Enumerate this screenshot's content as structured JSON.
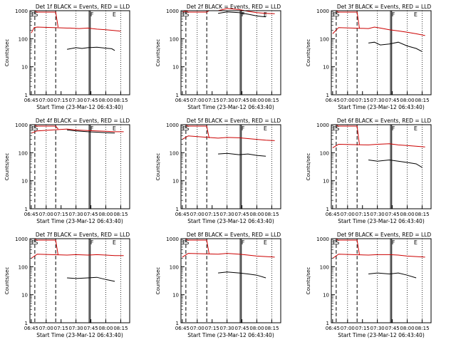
{
  "chart_data": [
    {
      "type": "line",
      "title": "Det 1f BLACK = Events, RED = LLD",
      "xlabel": "Start Time (23-Mar-12 06:43:40)",
      "ylabel": "Counts/sec",
      "x_ticks": [
        "06:45",
        "07:00",
        "07:15",
        "07:30",
        "07:45",
        "08:00",
        "08:15"
      ],
      "y_ticks": [
        "1",
        "10",
        "100",
        "1000"
      ],
      "yscale": "log",
      "ylim": [
        1,
        1000
      ],
      "markers": [
        "E",
        "S",
        "F",
        "E"
      ],
      "series": [
        {
          "color": "#cc0000",
          "values": [
            [
              6.75,
              160
            ],
            [
              6.8,
              250
            ],
            [
              6.85,
              260
            ],
            [
              7.35,
              240
            ],
            [
              7.4,
              240
            ],
            [
              7.55,
              230
            ],
            [
              7.7,
              240
            ],
            [
              7.85,
              220
            ],
            [
              8.0,
              210
            ],
            [
              8.1,
              200
            ],
            [
              8.25,
              185
            ]
          ]
        },
        {
          "color": "#000000",
          "values": [
            [
              7.35,
              42
            ],
            [
              7.5,
              48
            ],
            [
              7.6,
              45
            ],
            [
              7.7,
              48
            ],
            [
              7.85,
              50
            ],
            [
              8.0,
              46
            ],
            [
              8.1,
              44
            ],
            [
              8.15,
              38
            ]
          ]
        }
      ]
    },
    {
      "type": "line",
      "title": "Det 2f BLACK = Events, RED = LLD",
      "xlabel": "Start Time (23-Mar-12 06:43:40)",
      "ylabel": "Counts/sec",
      "x_ticks": [
        "06:45",
        "07:00",
        "07:15",
        "07:30",
        "07:45",
        "08:00",
        "08:15"
      ],
      "y_ticks": [
        "1",
        "10",
        "100",
        "1000"
      ],
      "yscale": "log",
      "ylim": [
        1,
        1000
      ],
      "markers": [
        "E",
        "S",
        "F",
        "E"
      ],
      "series": [
        {
          "color": "#cc0000",
          "values": [
            [
              6.75,
              900
            ],
            [
              6.85,
              1000
            ],
            [
              7.35,
              1000
            ],
            [
              7.5,
              1200
            ],
            [
              7.7,
              1100
            ],
            [
              7.85,
              950
            ],
            [
              8.0,
              850
            ],
            [
              8.15,
              800
            ],
            [
              8.3,
              780
            ]
          ]
        },
        {
          "color": "#000000",
          "values": [
            [
              7.35,
              800
            ],
            [
              7.5,
              900
            ],
            [
              7.7,
              850
            ],
            [
              7.85,
              750
            ],
            [
              8.0,
              650
            ],
            [
              8.15,
              600
            ]
          ]
        }
      ]
    },
    {
      "type": "line",
      "title": "Det 3f BLACK = Events, RED = LLD",
      "xlabel": "Start Time (23-Mar-12 06:43:40)",
      "ylabel": "Counts/sec",
      "x_ticks": [
        "06:45",
        "07:00",
        "07:15",
        "07:30",
        "07:45",
        "08:00",
        "08:15"
      ],
      "y_ticks": [
        "1",
        "10",
        "100",
        "1000"
      ],
      "yscale": "log",
      "ylim": [
        1,
        1000
      ],
      "markers": [
        "E",
        "S",
        "F",
        "E"
      ],
      "series": [
        {
          "color": "#cc0000",
          "values": [
            [
              6.75,
              150
            ],
            [
              6.85,
              250
            ],
            [
              7.35,
              230
            ],
            [
              7.45,
              260
            ],
            [
              7.55,
              240
            ],
            [
              7.7,
              210
            ],
            [
              7.85,
              190
            ],
            [
              8.0,
              170
            ],
            [
              8.15,
              150
            ],
            [
              8.3,
              130
            ]
          ]
        },
        {
          "color": "#000000",
          "values": [
            [
              7.35,
              70
            ],
            [
              7.45,
              75
            ],
            [
              7.55,
              60
            ],
            [
              7.7,
              65
            ],
            [
              7.85,
              75
            ],
            [
              8.0,
              55
            ],
            [
              8.15,
              45
            ],
            [
              8.25,
              35
            ]
          ]
        }
      ]
    },
    {
      "type": "line",
      "title": "Det 4f BLACK = Events, RED = LLD",
      "xlabel": "Start Time (23-Mar-12 06:43:40)",
      "ylabel": "Counts/sec",
      "x_ticks": [
        "06:45",
        "07:00",
        "07:15",
        "07:30",
        "07:45",
        "08:00",
        "08:15"
      ],
      "y_ticks": [
        "1",
        "10",
        "100",
        "1000"
      ],
      "yscale": "log",
      "ylim": [
        1,
        1000
      ],
      "markers": [
        "E",
        "S",
        "F",
        "E"
      ],
      "series": [
        {
          "color": "#cc0000",
          "values": [
            [
              6.75,
              500
            ],
            [
              6.85,
              600
            ],
            [
              7.35,
              700
            ],
            [
              7.5,
              650
            ],
            [
              7.7,
              620
            ],
            [
              7.85,
              600
            ],
            [
              8.0,
              580
            ],
            [
              8.15,
              560
            ],
            [
              8.3,
              560
            ]
          ]
        },
        {
          "color": "#000000",
          "values": [
            [
              7.35,
              650
            ],
            [
              7.5,
              600
            ],
            [
              7.7,
              560
            ],
            [
              7.85,
              540
            ],
            [
              8.0,
              520
            ],
            [
              8.15,
              500
            ]
          ]
        }
      ]
    },
    {
      "type": "line",
      "title": "Det 5f BLACK = Events, RED = LLD",
      "xlabel": "Start Time (23-Mar-12 06:43:40)",
      "ylabel": "Counts/sec",
      "x_ticks": [
        "06:45",
        "07:00",
        "07:15",
        "07:30",
        "07:45",
        "08:00",
        "08:15"
      ],
      "y_ticks": [
        "1",
        "10",
        "100",
        "1000"
      ],
      "yscale": "log",
      "ylim": [
        1,
        1000
      ],
      "markers": [
        "E",
        "S",
        "F",
        "E"
      ],
      "series": [
        {
          "color": "#cc0000",
          "values": [
            [
              6.75,
              300
            ],
            [
              6.85,
              400
            ],
            [
              7.35,
              330
            ],
            [
              7.5,
              350
            ],
            [
              7.7,
              340
            ],
            [
              7.85,
              320
            ],
            [
              8.0,
              300
            ],
            [
              8.15,
              280
            ],
            [
              8.3,
              270
            ]
          ]
        },
        {
          "color": "#000000",
          "values": [
            [
              7.35,
              90
            ],
            [
              7.5,
              95
            ],
            [
              7.7,
              85
            ],
            [
              7.85,
              90
            ],
            [
              8.0,
              80
            ],
            [
              8.15,
              75
            ]
          ]
        }
      ]
    },
    {
      "type": "line",
      "title": "Det 6f BLACK = Events, RED = LLD",
      "xlabel": "Start Time (23-Mar-12 06:43:40)",
      "ylabel": "Counts/sec",
      "x_ticks": [
        "06:45",
        "07:00",
        "07:15",
        "07:30",
        "07:45",
        "08:00",
        "08:15"
      ],
      "y_ticks": [
        "1",
        "10",
        "100",
        "1000"
      ],
      "yscale": "log",
      "ylim": [
        1,
        1000
      ],
      "markers": [
        "E",
        "S",
        "F",
        "E"
      ],
      "series": [
        {
          "color": "#cc0000",
          "values": [
            [
              6.75,
              150
            ],
            [
              6.85,
              200
            ],
            [
              7.35,
              190
            ],
            [
              7.5,
              200
            ],
            [
              7.7,
              210
            ],
            [
              7.85,
              190
            ],
            [
              8.0,
              180
            ],
            [
              8.15,
              170
            ],
            [
              8.3,
              160
            ]
          ]
        },
        {
          "color": "#000000",
          "values": [
            [
              7.35,
              55
            ],
            [
              7.5,
              50
            ],
            [
              7.7,
              55
            ],
            [
              7.85,
              50
            ],
            [
              8.0,
              45
            ],
            [
              8.15,
              40
            ],
            [
              8.25,
              30
            ]
          ]
        }
      ]
    },
    {
      "type": "line",
      "title": "Det 7f BLACK = Events, RED = LLD",
      "xlabel": "Start Time (23-Mar-12 06:43:40)",
      "ylabel": "Counts/sec",
      "x_ticks": [
        "06:45",
        "07:00",
        "07:15",
        "07:30",
        "07:45",
        "08:00",
        "08:15"
      ],
      "y_ticks": [
        "1",
        "10",
        "100",
        "1000"
      ],
      "yscale": "log",
      "ylim": [
        1,
        1000
      ],
      "markers": [
        "E",
        "S",
        "F",
        "E"
      ],
      "series": [
        {
          "color": "#cc0000",
          "values": [
            [
              6.75,
              200
            ],
            [
              6.85,
              280
            ],
            [
              7.35,
              260
            ],
            [
              7.5,
              270
            ],
            [
              7.7,
              260
            ],
            [
              7.85,
              270
            ],
            [
              8.0,
              260
            ],
            [
              8.15,
              250
            ],
            [
              8.3,
              250
            ]
          ]
        },
        {
          "color": "#000000",
          "values": [
            [
              7.35,
              40
            ],
            [
              7.5,
              38
            ],
            [
              7.7,
              40
            ],
            [
              7.85,
              42
            ],
            [
              8.0,
              35
            ],
            [
              8.15,
              30
            ]
          ]
        }
      ]
    },
    {
      "type": "line",
      "title": "Det 8f BLACK = Events, RED = LLD",
      "xlabel": "Start Time (23-Mar-12 06:43:40)",
      "ylabel": "Counts/sec",
      "x_ticks": [
        "06:45",
        "07:00",
        "07:15",
        "07:30",
        "07:45",
        "08:00",
        "08:15"
      ],
      "y_ticks": [
        "1",
        "10",
        "100",
        "1000"
      ],
      "yscale": "log",
      "ylim": [
        1,
        1000
      ],
      "markers": [
        "E",
        "S",
        "F",
        "E"
      ],
      "series": [
        {
          "color": "#cc0000",
          "values": [
            [
              6.75,
              220
            ],
            [
              6.85,
              300
            ],
            [
              7.35,
              280
            ],
            [
              7.5,
              300
            ],
            [
              7.7,
              280
            ],
            [
              7.85,
              260
            ],
            [
              8.0,
              240
            ],
            [
              8.15,
              230
            ],
            [
              8.3,
              220
            ]
          ]
        },
        {
          "color": "#000000",
          "values": [
            [
              7.35,
              60
            ],
            [
              7.5,
              65
            ],
            [
              7.7,
              60
            ],
            [
              7.85,
              55
            ],
            [
              8.0,
              50
            ],
            [
              8.15,
              40
            ]
          ]
        }
      ]
    },
    {
      "type": "line",
      "title": "Det 9f BLACK = Events, RED = LLD",
      "xlabel": "Start Time (23-Mar-12 06:43:40)",
      "ylabel": "Counts/sec",
      "x_ticks": [
        "06:45",
        "07:00",
        "07:15",
        "07:30",
        "07:45",
        "08:00",
        "08:15"
      ],
      "y_ticks": [
        "1",
        "10",
        "100",
        "1000"
      ],
      "yscale": "log",
      "ylim": [
        1,
        1000
      ],
      "markers": [
        "E",
        "S",
        "F",
        "E"
      ],
      "series": [
        {
          "color": "#cc0000",
          "values": [
            [
              6.75,
              200
            ],
            [
              6.85,
              280
            ],
            [
              7.35,
              260
            ],
            [
              7.5,
              270
            ],
            [
              7.7,
              270
            ],
            [
              7.85,
              260
            ],
            [
              8.0,
              240
            ],
            [
              8.15,
              230
            ],
            [
              8.3,
              220
            ]
          ]
        },
        {
          "color": "#000000",
          "values": [
            [
              7.35,
              55
            ],
            [
              7.5,
              60
            ],
            [
              7.7,
              55
            ],
            [
              7.85,
              60
            ],
            [
              8.0,
              50
            ],
            [
              8.15,
              40
            ]
          ]
        }
      ]
    }
  ]
}
